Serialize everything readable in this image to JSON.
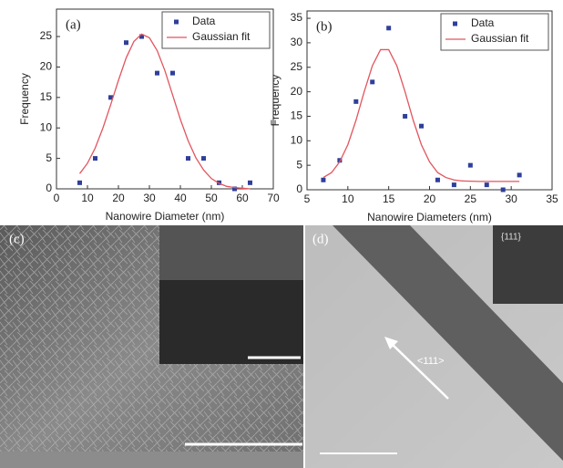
{
  "chart_data": [
    {
      "type": "scatter",
      "panel_label": "(a)",
      "x_label": "Nanowire Diameter (nm)",
      "y_label": "Frequency",
      "xlim": [
        0,
        70
      ],
      "xticks": [
        0,
        10,
        20,
        30,
        40,
        50,
        60,
        70
      ],
      "ylim": [
        0,
        29.5
      ],
      "yticks": [
        0,
        5,
        10,
        15,
        20,
        25
      ],
      "legend": "upper right",
      "series": [
        {
          "name": "Data",
          "mode": "markers",
          "color": "#2f3f9a",
          "x": [
            7.5,
            12.5,
            17.5,
            22.5,
            27.5,
            32.5,
            37.5,
            42.5,
            47.5,
            52.5,
            57.5,
            62.5
          ],
          "values": [
            1,
            5,
            15,
            24,
            25,
            19,
            19,
            5,
            5,
            1,
            0,
            1
          ]
        },
        {
          "name": "Gaussian fit",
          "mode": "line",
          "color": "#e2555e",
          "x": [
            7.5,
            10,
            12.5,
            15,
            17.5,
            20,
            22.5,
            25,
            27.5,
            30,
            32.5,
            35,
            37.5,
            40,
            42.5,
            45,
            47.5,
            50,
            52.5,
            55,
            57.5,
            60,
            62.5
          ],
          "values": [
            2.5,
            4.2,
            6.7,
            10,
            13.8,
            17.8,
            21.5,
            24.2,
            25.4,
            24.8,
            22.7,
            19.4,
            15.4,
            11.4,
            7.9,
            5.1,
            3.1,
            1.7,
            0.9,
            0.4,
            0.2,
            0.1,
            0
          ]
        }
      ]
    },
    {
      "type": "scatter",
      "panel_label": "(b)",
      "x_label": "Nanowire Diameters (nm)",
      "y_label": "Frequency",
      "xlim": [
        5,
        35
      ],
      "xticks": [
        5,
        10,
        15,
        20,
        25,
        30,
        35
      ],
      "ylim": [
        0,
        36.5
      ],
      "yticks": [
        0,
        5,
        10,
        15,
        20,
        25,
        30,
        35
      ],
      "legend": "upper right",
      "series": [
        {
          "name": "Data",
          "mode": "markers",
          "color": "#2f3f9a",
          "x": [
            7,
            9,
            11,
            13,
            15,
            17,
            19,
            21,
            23,
            25,
            27,
            29,
            31
          ],
          "values": [
            2,
            6,
            18,
            22,
            33,
            15,
            13,
            2,
            1,
            5,
            1,
            0,
            3
          ]
        },
        {
          "name": "Gaussian fit",
          "mode": "line",
          "color": "#e2555e",
          "x": [
            7,
            8,
            9,
            10,
            11,
            12,
            13,
            14,
            15,
            16,
            17,
            18,
            19,
            20,
            21,
            22,
            23,
            24,
            26,
            28,
            31
          ],
          "values": [
            2.5,
            3.5,
            5.7,
            9.2,
            14.2,
            20,
            25.3,
            28.6,
            28.6,
            25.3,
            20,
            14.2,
            9.2,
            5.7,
            3.5,
            2.5,
            2,
            1.8,
            1.7,
            1.7,
            1.7
          ]
        }
      ]
    }
  ],
  "panels": {
    "c": {
      "label": "(c)"
    },
    "d": {
      "label": "(d)",
      "direction": "<111>",
      "inset": "{111}"
    }
  }
}
